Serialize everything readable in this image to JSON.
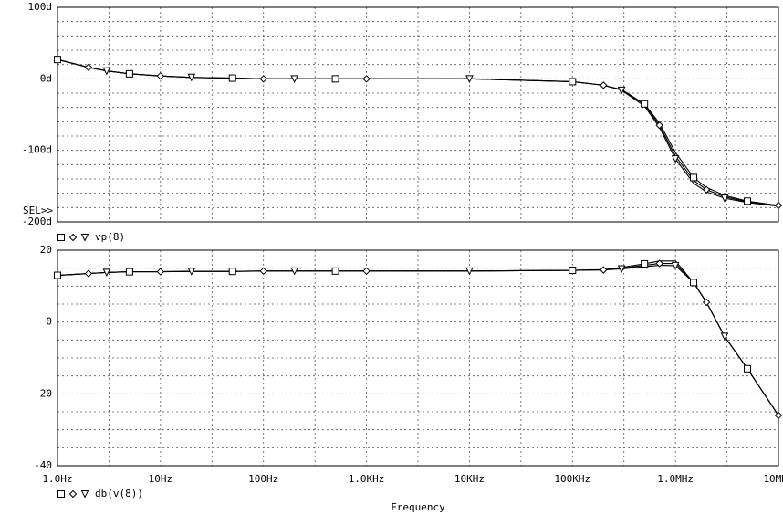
{
  "chart_data": [
    {
      "type": "line",
      "xscale": "log",
      "grid": true,
      "grid_subdivisions": 5,
      "annotation": "SEL>>",
      "legend": "vp(8)",
      "x": [
        1,
        2,
        3,
        5,
        10,
        20,
        50,
        100,
        200,
        500,
        1000,
        10000,
        100000,
        200000,
        300000,
        500000,
        700000,
        1000000,
        1500000,
        2000000,
        3000000,
        5000000,
        10000000
      ],
      "xlim": [
        1,
        10000000
      ],
      "xticks": [
        1,
        10,
        100,
        1000,
        10000,
        100000,
        1000000,
        10000000
      ],
      "ylim": [
        -200,
        100
      ],
      "yticks": [
        {
          "value": 100,
          "label": "100d"
        },
        {
          "value": 0,
          "label": "0d"
        },
        {
          "value": -100,
          "label": "-100d"
        },
        {
          "value": -200,
          "label": "-200d"
        }
      ],
      "series": [
        {
          "color": "#000000",
          "marker": "square",
          "values": [
            27,
            16,
            11,
            7,
            4,
            2,
            1,
            0,
            0,
            0,
            0,
            0,
            -4,
            -9,
            -15,
            -35,
            -62,
            -103,
            -138,
            -152,
            -163,
            -171,
            -177
          ]
        },
        {
          "color": "#000000",
          "marker": "diamond",
          "values": [
            27,
            16,
            11,
            7,
            4,
            2,
            1,
            0,
            0,
            0,
            0,
            0,
            -4,
            -9,
            -15,
            -36,
            -65,
            -108,
            -142,
            -155,
            -165,
            -172,
            -177
          ]
        },
        {
          "color": "#000000",
          "marker": "triangle",
          "values": [
            27,
            16,
            11,
            7,
            4,
            2,
            1,
            0,
            0,
            0,
            0,
            0,
            -4,
            -9,
            -16,
            -38,
            -68,
            -112,
            -146,
            -158,
            -167,
            -173,
            -178
          ]
        }
      ]
    },
    {
      "type": "line",
      "xscale": "log",
      "grid": true,
      "grid_subdivisions": 4,
      "legend": "db(v(8))",
      "xlabel": "Frequency",
      "x": [
        1,
        2,
        3,
        5,
        10,
        20,
        50,
        100,
        200,
        500,
        1000,
        10000,
        100000,
        200000,
        300000,
        500000,
        700000,
        1000000,
        1500000,
        2000000,
        3000000,
        5000000,
        10000000
      ],
      "xlim": [
        1,
        10000000
      ],
      "xticks": [
        {
          "value": 1,
          "label": "1.0Hz"
        },
        {
          "value": 10,
          "label": "10Hz"
        },
        {
          "value": 100,
          "label": "100Hz"
        },
        {
          "value": 1000,
          "label": "1.0KHz"
        },
        {
          "value": 10000,
          "label": "10KHz"
        },
        {
          "value": 100000,
          "label": "100KHz"
        },
        {
          "value": 1000000,
          "label": "1.0MHz"
        },
        {
          "value": 10000000,
          "label": "10MHz"
        }
      ],
      "ylim": [
        -40,
        20
      ],
      "yticks": [
        20,
        0,
        -20,
        -40
      ],
      "series": [
        {
          "color": "#000000",
          "marker": "square",
          "values": [
            13,
            13.5,
            13.8,
            14,
            14,
            14.1,
            14.1,
            14.2,
            14.2,
            14.2,
            14.2,
            14.2,
            14.4,
            14.6,
            15.2,
            16.2,
            17,
            17,
            11,
            5.5,
            -4,
            -13,
            -26
          ]
        },
        {
          "color": "#000000",
          "marker": "diamond",
          "values": [
            13,
            13.5,
            13.8,
            14,
            14,
            14.1,
            14.1,
            14.2,
            14.2,
            14.2,
            14.2,
            14.2,
            14.4,
            14.5,
            15,
            15.8,
            16.3,
            16.3,
            11,
            5.5,
            -4,
            -13,
            -26
          ]
        },
        {
          "color": "#000000",
          "marker": "triangle",
          "values": [
            13,
            13.5,
            13.8,
            14,
            14,
            14.1,
            14.1,
            14.2,
            14.2,
            14.2,
            14.2,
            14.2,
            14.4,
            14.5,
            14.8,
            15.4,
            15.8,
            15.7,
            11,
            5.5,
            -4,
            -13,
            -26
          ]
        }
      ]
    }
  ]
}
